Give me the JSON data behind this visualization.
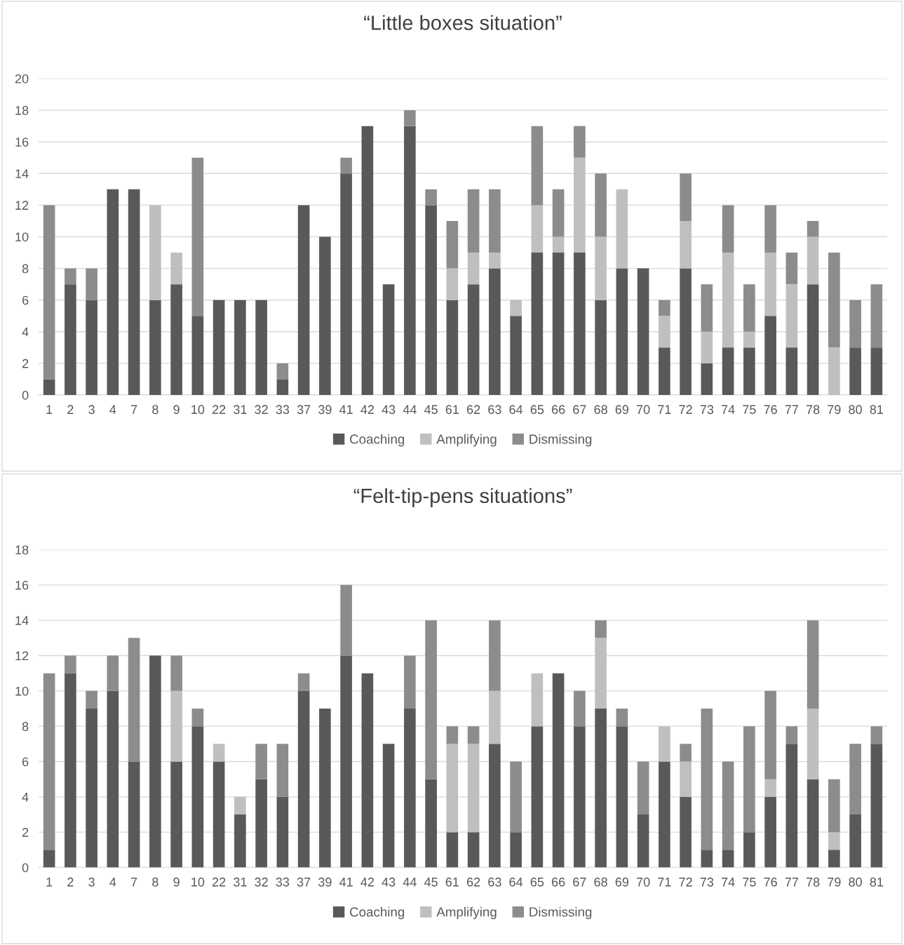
{
  "chart_data": [
    {
      "type": "bar",
      "title": "“Little boxes situation”",
      "stacked": true,
      "grid": "y",
      "legend": "bottom",
      "categories": [
        "1",
        "2",
        "3",
        "4",
        "7",
        "8",
        "9",
        "10",
        "22",
        "31",
        "32",
        "33",
        "37",
        "39",
        "41",
        "42",
        "43",
        "44",
        "45",
        "61",
        "62",
        "63",
        "64",
        "65",
        "66",
        "67",
        "68",
        "69",
        "70",
        "71",
        "72",
        "73",
        "74",
        "75",
        "76",
        "77",
        "78",
        "79",
        "80",
        "81"
      ],
      "ylim": [
        0,
        20
      ],
      "yticks": [
        0,
        2,
        4,
        6,
        8,
        10,
        12,
        14,
        16,
        18,
        20
      ],
      "series": [
        {
          "name": "Coaching",
          "color": "#595959",
          "values": [
            1,
            7,
            6,
            13,
            13,
            6,
            7,
            5,
            6,
            6,
            6,
            1,
            12,
            10,
            14,
            17,
            7,
            17,
            12,
            6,
            7,
            8,
            5,
            9,
            9,
            9,
            6,
            8,
            8,
            3,
            8,
            2,
            3,
            3,
            5,
            3,
            7,
            0,
            3,
            3
          ]
        },
        {
          "name": "Amplifying",
          "color": "#bfbfbf",
          "values": [
            0,
            0,
            0,
            0,
            0,
            6,
            2,
            0,
            0,
            0,
            0,
            0,
            0,
            0,
            0,
            0,
            0,
            0,
            0,
            2,
            2,
            1,
            1,
            3,
            1,
            6,
            4,
            5,
            0,
            2,
            3,
            2,
            6,
            1,
            4,
            4,
            3,
            3,
            0,
            0
          ]
        },
        {
          "name": "Dismissing",
          "color": "#8c8c8c",
          "values": [
            11,
            1,
            2,
            0,
            0,
            0,
            0,
            10,
            0,
            0,
            0,
            1,
            0,
            0,
            1,
            0,
            0,
            1,
            1,
            3,
            4,
            4,
            0,
            5,
            3,
            2,
            4,
            0,
            0,
            1,
            3,
            3,
            3,
            3,
            3,
            2,
            1,
            6,
            3,
            4
          ]
        }
      ]
    },
    {
      "type": "bar",
      "title": "“Felt-tip-pens situations”",
      "stacked": true,
      "grid": "y",
      "legend": "bottom",
      "categories": [
        "1",
        "2",
        "3",
        "4",
        "7",
        "8",
        "9",
        "10",
        "22",
        "31",
        "32",
        "33",
        "37",
        "39",
        "41",
        "42",
        "43",
        "44",
        "45",
        "61",
        "62",
        "63",
        "64",
        "65",
        "66",
        "67",
        "68",
        "69",
        "70",
        "71",
        "72",
        "73",
        "74",
        "75",
        "76",
        "77",
        "78",
        "79",
        "80",
        "81"
      ],
      "ylim": [
        0,
        18
      ],
      "yticks": [
        0,
        2,
        4,
        6,
        8,
        10,
        12,
        14,
        16,
        18
      ],
      "series": [
        {
          "name": "Coaching",
          "color": "#595959",
          "values": [
            1,
            11,
            9,
            10,
            6,
            12,
            6,
            8,
            6,
            3,
            5,
            4,
            10,
            9,
            12,
            11,
            7,
            9,
            5,
            2,
            2,
            7,
            2,
            8,
            11,
            8,
            9,
            8,
            3,
            6,
            4,
            1,
            1,
            2,
            4,
            7,
            5,
            1,
            3,
            7
          ]
        },
        {
          "name": "Amplifying",
          "color": "#bfbfbf",
          "values": [
            0,
            0,
            0,
            0,
            0,
            0,
            4,
            0,
            1,
            1,
            0,
            0,
            0,
            0,
            0,
            0,
            0,
            0,
            0,
            5,
            5,
            3,
            0,
            3,
            0,
            0,
            4,
            0,
            0,
            2,
            2,
            0,
            0,
            0,
            1,
            0,
            4,
            1,
            0,
            0
          ]
        },
        {
          "name": "Dismissing",
          "color": "#8c8c8c",
          "values": [
            10,
            1,
            1,
            2,
            7,
            0,
            2,
            1,
            0,
            0,
            2,
            3,
            1,
            0,
            4,
            0,
            0,
            3,
            9,
            1,
            1,
            4,
            4,
            0,
            0,
            2,
            1,
            1,
            3,
            0,
            1,
            8,
            5,
            6,
            5,
            1,
            5,
            3,
            4,
            1
          ]
        }
      ]
    }
  ]
}
